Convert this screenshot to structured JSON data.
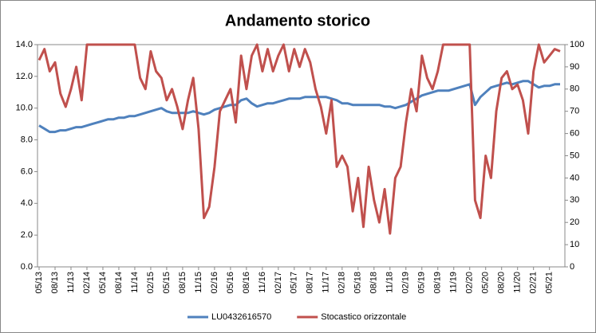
{
  "chart_data": {
    "type": "line",
    "title": "Andamento storico",
    "categories": [
      "05/13",
      null,
      null,
      "08/13",
      null,
      null,
      "11/13",
      null,
      null,
      "02/14",
      null,
      null,
      "05/14",
      null,
      null,
      "08/14",
      null,
      null,
      "11/14",
      null,
      null,
      "02/15",
      null,
      null,
      "05/15",
      null,
      null,
      "08/15",
      null,
      null,
      "11/15",
      null,
      null,
      "02/16",
      null,
      null,
      "05/16",
      null,
      null,
      "08/16",
      null,
      null,
      "11/16",
      null,
      null,
      "02/17",
      null,
      null,
      "05/17",
      null,
      null,
      "08/17",
      null,
      null,
      "11/17",
      null,
      null,
      "02/18",
      null,
      null,
      "05/18",
      null,
      null,
      "08/18",
      null,
      null,
      "11/18",
      null,
      null,
      "02/19",
      null,
      null,
      "05/19",
      null,
      null,
      "08/19",
      null,
      null,
      "11/19",
      null,
      null,
      "02/20",
      null,
      null,
      "05/20",
      null,
      null,
      "08/20",
      null,
      null,
      "11/20",
      null,
      null,
      "02/21",
      null,
      null,
      "05/21",
      null,
      null
    ],
    "series": [
      {
        "name": "LU0432616570",
        "color": "#4f81bd",
        "values": [
          8.9,
          8.7,
          8.5,
          8.5,
          8.6,
          8.6,
          8.7,
          8.8,
          8.8,
          8.9,
          9.0,
          9.1,
          9.2,
          9.3,
          9.3,
          9.4,
          9.4,
          9.5,
          9.5,
          9.6,
          9.7,
          9.8,
          9.9,
          10.0,
          9.8,
          9.7,
          9.7,
          9.7,
          9.7,
          9.8,
          9.7,
          9.6,
          9.7,
          9.9,
          10.0,
          10.1,
          10.2,
          10.2,
          10.5,
          10.6,
          10.3,
          10.1,
          10.2,
          10.3,
          10.3,
          10.4,
          10.5,
          10.6,
          10.6,
          10.6,
          10.7,
          10.7,
          10.7,
          10.7,
          10.7,
          10.6,
          10.5,
          10.3,
          10.3,
          10.2,
          10.2,
          10.2,
          10.2,
          10.2,
          10.2,
          10.1,
          10.1,
          10.0,
          10.1,
          10.2,
          10.4,
          10.6,
          10.8,
          10.9,
          11.0,
          11.1,
          11.1,
          11.1,
          11.2,
          11.3,
          11.4,
          11.5,
          10.2,
          10.7,
          11.0,
          11.3,
          11.4,
          11.5,
          11.6,
          11.5,
          11.6,
          11.7,
          11.7,
          11.5,
          11.3,
          11.4,
          11.4,
          11.5,
          11.5
        ]
      },
      {
        "name": "Stocastico orizzontale",
        "color": "#c0504d",
        "axis": "y2",
        "values": [
          93,
          98,
          88,
          92,
          78,
          72,
          80,
          90,
          75,
          100,
          100,
          100,
          100,
          100,
          100,
          100,
          100,
          100,
          100,
          85,
          80,
          97,
          88,
          85,
          75,
          80,
          72,
          62,
          75,
          85,
          62,
          22,
          27,
          45,
          70,
          75,
          80,
          65,
          95,
          80,
          95,
          100,
          88,
          98,
          88,
          95,
          100,
          88,
          98,
          90,
          98,
          92,
          80,
          72,
          60,
          75,
          45,
          50,
          45,
          25,
          40,
          18,
          45,
          30,
          20,
          35,
          15,
          40,
          45,
          65,
          80,
          70,
          95,
          85,
          80,
          88,
          100,
          100,
          100,
          100,
          100,
          100,
          30,
          22,
          50,
          40,
          70,
          85,
          88,
          80,
          82,
          75,
          60,
          88,
          100,
          92,
          95,
          98,
          97
        ]
      }
    ],
    "ylim": [
      0,
      14
    ],
    "yticks": [
      {
        "value": 0,
        "label": "0.0"
      },
      {
        "value": 2,
        "label": "2.0"
      },
      {
        "value": 4,
        "label": "4.0"
      },
      {
        "value": 6,
        "label": "6.0"
      },
      {
        "value": 8,
        "label": "8.0"
      },
      {
        "value": 10,
        "label": "10.0"
      },
      {
        "value": 12,
        "label": "12.0"
      },
      {
        "value": 14,
        "label": "14.0"
      }
    ],
    "y2lim": [
      0,
      100
    ],
    "y2ticks": [
      0,
      10,
      20,
      30,
      40,
      50,
      60,
      70,
      80,
      90,
      100
    ],
    "legend": "bottom"
  }
}
